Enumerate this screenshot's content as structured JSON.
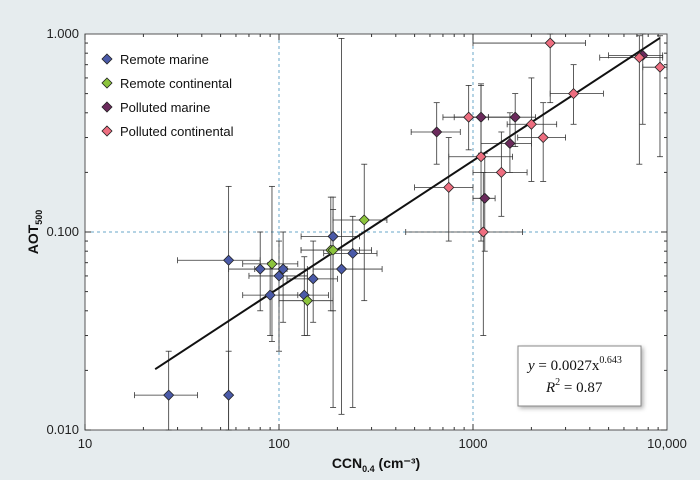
{
  "chart_data": {
    "type": "scatter",
    "xscale": "log",
    "yscale": "log",
    "xlim": [
      10,
      10000
    ],
    "ylim": [
      0.01,
      1.0
    ],
    "xticks": [
      10,
      100,
      1000,
      10000
    ],
    "xtick_labels": [
      "10",
      "100",
      "1000",
      "10,000"
    ],
    "yticks": [
      0.01,
      0.1,
      1.0
    ],
    "ytick_labels": [
      "0.010",
      "0.100",
      "1.000"
    ],
    "xlabel": "CCN",
    "xlabel_sub": "0.4",
    "xlabel_units": " (cm⁻³)",
    "ylabel": "AOT",
    "ylabel_sub": "500",
    "grid": "dashed at 100 and 1000 on x; 0.100 on y",
    "legend_position": "top-left",
    "series": [
      {
        "name": "Remote marine",
        "color": "#4a5aa8",
        "points": [
          {
            "x": 27,
            "y": 0.015,
            "xerr": [
              18,
              38
            ],
            "yerr": [
              0.01,
              0.025
            ]
          },
          {
            "x": 55,
            "y": 0.015,
            "xerr": [
              55,
              55
            ],
            "yerr": [
              0.01,
              0.025
            ]
          },
          {
            "x": 55,
            "y": 0.072,
            "xerr": [
              30,
              80
            ],
            "yerr": [
              0.01,
              0.17
            ]
          },
          {
            "x": 80,
            "y": 0.065,
            "xerr": [
              55,
              110
            ],
            "yerr": [
              0.04,
              0.1
            ]
          },
          {
            "x": 90,
            "y": 0.048,
            "xerr": [
              65,
              125
            ],
            "yerr": [
              0.03,
              0.07
            ]
          },
          {
            "x": 100,
            "y": 0.06,
            "xerr": [
              70,
              140
            ],
            "yerr": [
              0.025,
              0.09
            ]
          },
          {
            "x": 105,
            "y": 0.065,
            "xerr": [
              75,
              140
            ],
            "yerr": [
              0.035,
              0.1
            ]
          },
          {
            "x": 135,
            "y": 0.048,
            "xerr": [
              100,
              180
            ],
            "yerr": [
              0.03,
              0.075
            ]
          },
          {
            "x": 150,
            "y": 0.058,
            "xerr": [
              110,
              200
            ],
            "yerr": [
              0.035,
              0.09
            ]
          },
          {
            "x": 190,
            "y": 0.095,
            "xerr": [
              130,
              260
            ],
            "yerr": [
              0.013,
              0.15
            ]
          },
          {
            "x": 210,
            "y": 0.065,
            "xerr": [
              150,
              340
            ],
            "yerr": [
              0.012,
              0.95
            ]
          },
          {
            "x": 240,
            "y": 0.078,
            "xerr": [
              170,
              320
            ],
            "yerr": [
              0.013,
              0.12
            ]
          }
        ]
      },
      {
        "name": "Remote continental",
        "color": "#8cc43c",
        "points": [
          {
            "x": 92,
            "y": 0.069,
            "xerr": [
              65,
              125
            ],
            "yerr": [
              0.028,
              0.17
            ]
          },
          {
            "x": 140,
            "y": 0.045,
            "xerr": [
              100,
              190
            ],
            "yerr": [
              0.03,
              0.065
            ]
          },
          {
            "x": 185,
            "y": 0.081,
            "xerr": [
              130,
              300
            ],
            "yerr": [
              0.04,
              0.15
            ]
          },
          {
            "x": 190,
            "y": 0.081,
            "xerr": [
              130,
              260
            ],
            "yerr": [
              0.04,
              0.13
            ]
          },
          {
            "x": 275,
            "y": 0.115,
            "xerr": [
              190,
              360
            ],
            "yerr": [
              0.045,
              0.22
            ]
          }
        ]
      },
      {
        "name": "Polluted marine",
        "color": "#6b2a5c",
        "points": [
          {
            "x": 650,
            "y": 0.32,
            "xerr": [
              480,
              860
            ],
            "yerr": [
              0.22,
              0.45
            ]
          },
          {
            "x": 1100,
            "y": 0.38,
            "xerr": [
              800,
              1600
            ],
            "yerr": [
              0.25,
              0.56
            ]
          },
          {
            "x": 1150,
            "y": 0.148,
            "xerr": [
              1000,
              1300
            ],
            "yerr": [
              0.08,
              0.25
            ]
          },
          {
            "x": 1550,
            "y": 0.28,
            "xerr": [
              1100,
              2000
            ],
            "yerr": [
              0.2,
              0.4
            ]
          },
          {
            "x": 1650,
            "y": 0.38,
            "xerr": [
              1200,
              2100
            ],
            "yerr": [
              0.27,
              0.5
            ]
          },
          {
            "x": 7500,
            "y": 0.78,
            "xerr": [
              5000,
              9500
            ],
            "yerr": [
              0.35,
              1.0
            ]
          }
        ]
      },
      {
        "name": "Polluted continental",
        "color": "#ee6e80",
        "points": [
          {
            "x": 750,
            "y": 0.168,
            "xerr": [
              500,
              1000
            ],
            "yerr": [
              0.09,
              0.3
            ]
          },
          {
            "x": 950,
            "y": 0.38,
            "xerr": [
              700,
              1200
            ],
            "yerr": [
              0.26,
              0.55
            ]
          },
          {
            "x": 1100,
            "y": 0.24,
            "xerr": [
              750,
              1600
            ],
            "yerr": [
              0.09,
              0.55
            ]
          },
          {
            "x": 1130,
            "y": 0.1,
            "xerr": [
              450,
              1800
            ],
            "yerr": [
              0.03,
              0.2
            ]
          },
          {
            "x": 1400,
            "y": 0.2,
            "xerr": [
              1000,
              1900
            ],
            "yerr": [
              0.12,
              0.32
            ]
          },
          {
            "x": 2000,
            "y": 0.35,
            "xerr": [
              1500,
              2700
            ],
            "yerr": [
              0.18,
              0.6
            ]
          },
          {
            "x": 2300,
            "y": 0.3,
            "xerr": [
              1700,
              3000
            ],
            "yerr": [
              0.18,
              0.45
            ]
          },
          {
            "x": 2500,
            "y": 0.9,
            "xerr": [
              1000,
              3800
            ],
            "yerr": [
              0.45,
              1.0
            ]
          },
          {
            "x": 3300,
            "y": 0.5,
            "xerr": [
              2500,
              4700
            ],
            "yerr": [
              0.35,
              0.7
            ]
          },
          {
            "x": 7200,
            "y": 0.76,
            "xerr": [
              4500,
              9500
            ],
            "yerr": [
              0.22,
              0.98
            ]
          },
          {
            "x": 9200,
            "y": 0.68,
            "xerr": [
              7500,
              10000
            ],
            "yerr": [
              0.24,
              0.98
            ]
          }
        ]
      }
    ],
    "fit": {
      "a": 0.0027,
      "b": 0.643,
      "x_range": [
        23,
        9200
      ],
      "equation_prefix": "y",
      "equation_middle": " = 0.0027x",
      "exponent": "0.643",
      "r2_prefix": "R",
      "r2_sup": "2",
      "r2_value": " = 0.87"
    }
  }
}
